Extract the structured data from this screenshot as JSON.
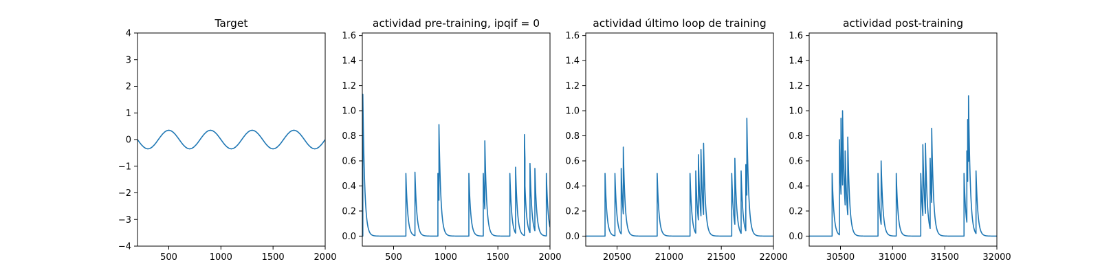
{
  "figure": {
    "background": "#ffffff",
    "line_color": "#1f77b4"
  },
  "chart_data": [
    {
      "type": "line",
      "title": "Target",
      "xlim": [
        200,
        2000
      ],
      "ylim": [
        -4,
        4
      ],
      "xticks": [
        500,
        1000,
        1500,
        2000
      ],
      "yticks": [
        -4,
        -3,
        -2,
        -1,
        0,
        1,
        2,
        3,
        4
      ],
      "series": [
        {
          "x": [
            200,
            220,
            240,
            260,
            280,
            300,
            320,
            340,
            360,
            380,
            400,
            420,
            440,
            460,
            480,
            500,
            520,
            540,
            560,
            580,
            600,
            620,
            640,
            660,
            680,
            700,
            720,
            740,
            760,
            780,
            800,
            820,
            840,
            860,
            880,
            900,
            920,
            940,
            960,
            980,
            1000,
            1020,
            1040,
            1060,
            1080,
            1100,
            1120,
            1140,
            1160,
            1180,
            1200,
            1220,
            1240,
            1260,
            1280,
            1300,
            1320,
            1340,
            1360,
            1380,
            1400,
            1420,
            1440,
            1460,
            1480,
            1500,
            1520,
            1540,
            1560,
            1580,
            1600,
            1620,
            1640,
            1660,
            1680,
            1700,
            1720,
            1740,
            1760,
            1780,
            1800,
            1820,
            1840,
            1860,
            1880,
            1900,
            1920,
            1940,
            1960,
            1980,
            2000
          ],
          "y": [
            0.0,
            -0.108,
            -0.206,
            -0.283,
            -0.333,
            -0.35,
            -0.333,
            -0.283,
            -0.206,
            -0.108,
            0.0,
            0.108,
            0.206,
            0.283,
            0.333,
            0.35,
            0.333,
            0.283,
            0.206,
            0.108,
            0.0,
            -0.108,
            -0.206,
            -0.283,
            -0.333,
            -0.35,
            -0.333,
            -0.283,
            -0.206,
            -0.108,
            0.0,
            0.108,
            0.206,
            0.283,
            0.333,
            0.35,
            0.333,
            0.283,
            0.206,
            0.108,
            0.0,
            -0.108,
            -0.206,
            -0.283,
            -0.333,
            -0.35,
            -0.333,
            -0.283,
            -0.206,
            -0.108,
            0.0,
            0.108,
            0.206,
            0.283,
            0.333,
            0.35,
            0.333,
            0.283,
            0.206,
            0.108,
            0.0,
            -0.108,
            -0.206,
            -0.283,
            -0.333,
            -0.35,
            -0.333,
            -0.283,
            -0.206,
            -0.108,
            0.0,
            0.108,
            0.206,
            0.283,
            0.333,
            0.35,
            0.333,
            0.283,
            0.206,
            0.108,
            0.0,
            -0.108,
            -0.206,
            -0.283,
            -0.333,
            -0.35,
            -0.333,
            -0.283,
            -0.206,
            -0.108,
            0.0
          ]
        }
      ]
    },
    {
      "type": "line",
      "title": "actividad pre-training, ipqif = 0",
      "xlim": [
        200,
        2000
      ],
      "ylim": [
        -0.08,
        1.62
      ],
      "xticks": [
        500,
        1000,
        1500,
        2000
      ],
      "yticks": [
        0.0,
        0.2,
        0.4,
        0.6,
        0.8,
        1.0,
        1.2,
        1.4,
        1.6
      ],
      "series": [
        {
          "spikes": [
            {
              "t": 205,
              "a": 1.13
            },
            {
              "t": 618,
              "a": 0.5
            },
            {
              "t": 705,
              "a": 0.51
            },
            {
              "t": 925,
              "a": 0.5
            },
            {
              "t": 935,
              "a": 0.89
            },
            {
              "t": 1222,
              "a": 0.5
            },
            {
              "t": 1360,
              "a": 0.5
            },
            {
              "t": 1375,
              "a": 0.76
            },
            {
              "t": 1615,
              "a": 0.5
            },
            {
              "t": 1670,
              "a": 0.55
            },
            {
              "t": 1755,
              "a": 0.81
            },
            {
              "t": 1760,
              "a": 0.4
            },
            {
              "t": 1808,
              "a": 0.58
            },
            {
              "t": 1855,
              "a": 0.54
            },
            {
              "t": 1965,
              "a": 0.5
            }
          ]
        }
      ]
    },
    {
      "type": "line",
      "title": "actividad último loop de training",
      "xlim": [
        20200,
        22000
      ],
      "ylim": [
        -0.08,
        1.62
      ],
      "xticks": [
        20500,
        21000,
        21500,
        22000
      ],
      "yticks": [
        0.0,
        0.2,
        0.4,
        0.6,
        0.8,
        1.0,
        1.2,
        1.4,
        1.6
      ],
      "series": [
        {
          "spikes": [
            {
              "t": 20385,
              "a": 0.5
            },
            {
              "t": 20480,
              "a": 0.5
            },
            {
              "t": 20540,
              "a": 0.54
            },
            {
              "t": 20560,
              "a": 0.71
            },
            {
              "t": 20885,
              "a": 0.5
            },
            {
              "t": 21200,
              "a": 0.5
            },
            {
              "t": 21255,
              "a": 0.52
            },
            {
              "t": 21280,
              "a": 0.65
            },
            {
              "t": 21305,
              "a": 0.69
            },
            {
              "t": 21330,
              "a": 0.74
            },
            {
              "t": 21600,
              "a": 0.5
            },
            {
              "t": 21630,
              "a": 0.62
            },
            {
              "t": 21690,
              "a": 0.52
            },
            {
              "t": 21735,
              "a": 0.57
            },
            {
              "t": 21745,
              "a": 0.94
            }
          ]
        }
      ]
    },
    {
      "type": "line",
      "title": "actividad post-training",
      "xlim": [
        30200,
        32000
      ],
      "ylim": [
        -0.08,
        1.62
      ],
      "xticks": [
        30500,
        31000,
        31500,
        32000
      ],
      "yticks": [
        0.0,
        0.2,
        0.4,
        0.6,
        0.8,
        1.0,
        1.2,
        1.4,
        1.6
      ],
      "series": [
        {
          "spikes": [
            {
              "t": 30420,
              "a": 0.5
            },
            {
              "t": 30490,
              "a": 0.77
            },
            {
              "t": 30505,
              "a": 0.94
            },
            {
              "t": 30520,
              "a": 1.0
            },
            {
              "t": 30545,
              "a": 0.68
            },
            {
              "t": 30570,
              "a": 0.79
            },
            {
              "t": 30860,
              "a": 0.5
            },
            {
              "t": 30890,
              "a": 0.6
            },
            {
              "t": 31035,
              "a": 0.5
            },
            {
              "t": 31270,
              "a": 0.5
            },
            {
              "t": 31290,
              "a": 0.73
            },
            {
              "t": 31315,
              "a": 0.74
            },
            {
              "t": 31360,
              "a": 0.62
            },
            {
              "t": 31375,
              "a": 0.86
            },
            {
              "t": 31685,
              "a": 0.5
            },
            {
              "t": 31712,
              "a": 0.68
            },
            {
              "t": 31720,
              "a": 0.93
            },
            {
              "t": 31728,
              "a": 1.12
            },
            {
              "t": 31800,
              "a": 0.52
            }
          ]
        }
      ]
    }
  ]
}
